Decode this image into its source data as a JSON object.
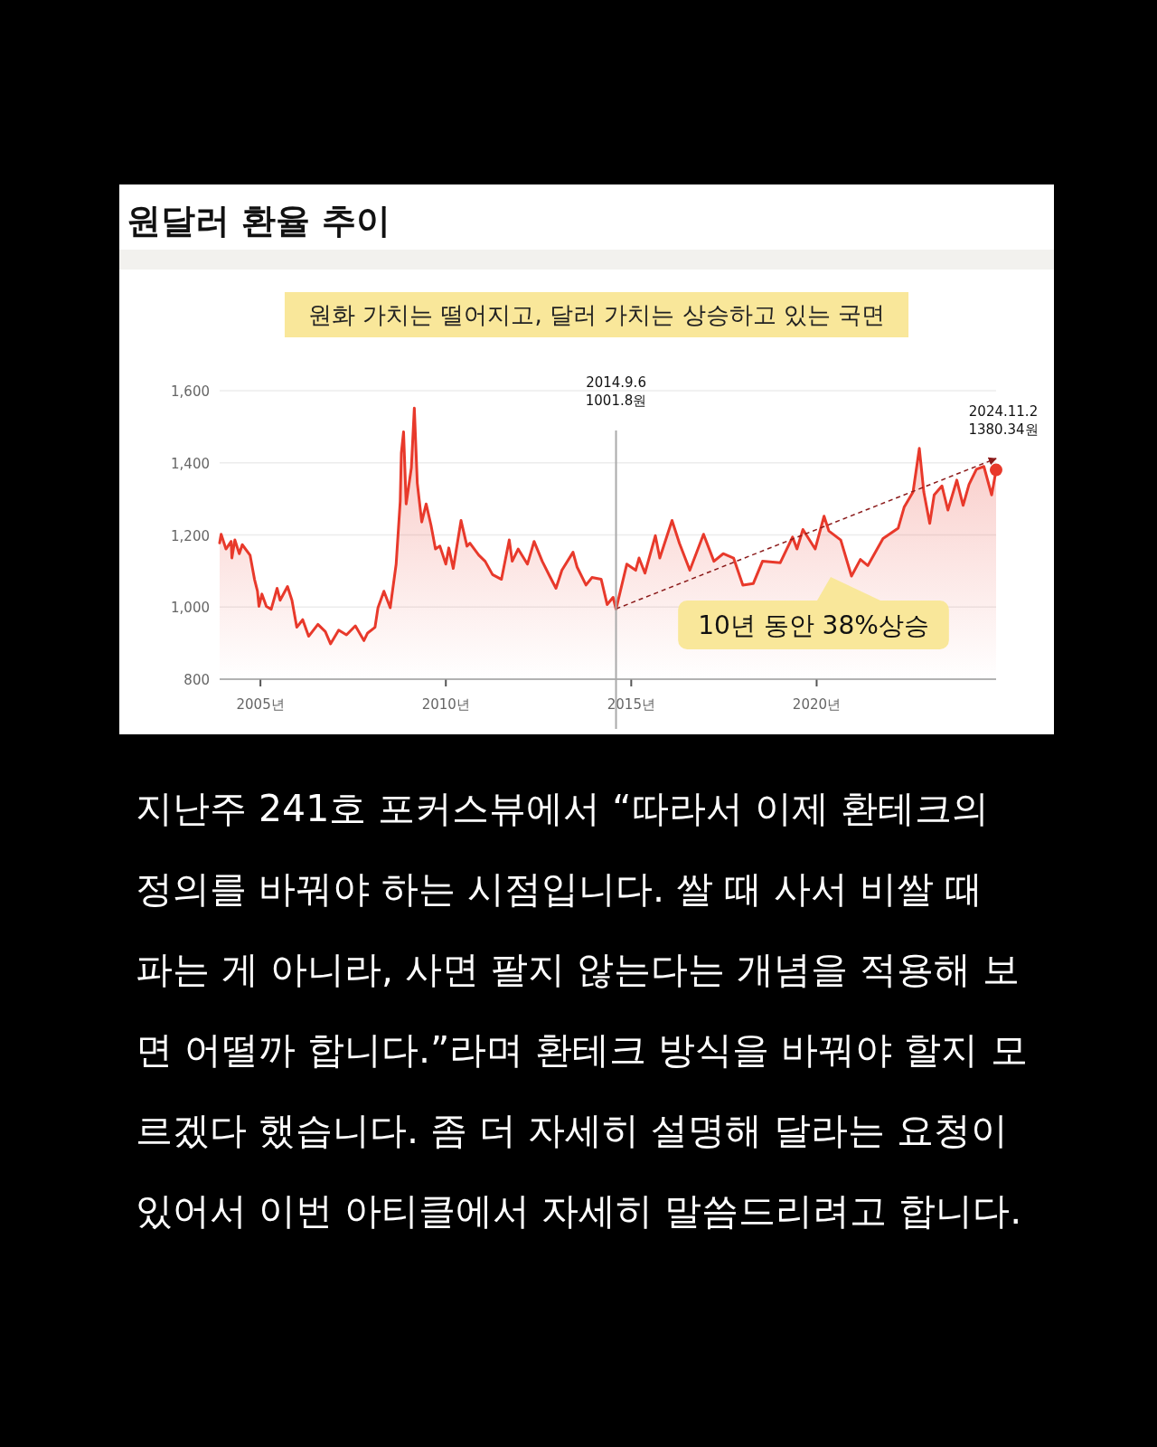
{
  "chart_data": {
    "type": "area",
    "title": "원달러 환율 추이",
    "subtitle": "원화 가치는 떨어지고, 달러 가치는 상승하고 있는 국면",
    "xlim": [
      2003.9,
      2024.84
    ],
    "ylim": [
      800,
      1600
    ],
    "xticks": [
      {
        "value": 2005,
        "label": "2005년"
      },
      {
        "value": 2010,
        "label": "2010년"
      },
      {
        "value": 2015,
        "label": "2015년"
      },
      {
        "value": 2020,
        "label": "2020년"
      }
    ],
    "yticks": [
      {
        "value": 800,
        "label": "800"
      },
      {
        "value": 1000,
        "label": "1,000"
      },
      {
        "value": 1200,
        "label": "1,200"
      },
      {
        "value": 1400,
        "label": "1,400"
      },
      {
        "value": 1600,
        "label": "1,600"
      }
    ],
    "grid": "y",
    "series": [
      {
        "color": "#e8392b",
        "x": [
          2003.9,
          2003.94,
          2004.07,
          2004.21,
          2004.23,
          2004.31,
          2004.43,
          2004.51,
          2004.72,
          2004.84,
          2004.92,
          2004.96,
          2005.04,
          2005.16,
          2005.29,
          2005.45,
          2005.53,
          2005.73,
          2005.85,
          2005.98,
          2006.14,
          2006.3,
          2006.55,
          2006.75,
          2006.89,
          2007.11,
          2007.32,
          2007.56,
          2007.79,
          2007.89,
          2008.09,
          2008.17,
          2008.33,
          2008.5,
          2008.66,
          2008.77,
          2008.8,
          2008.86,
          2008.93,
          2009.07,
          2009.15,
          2009.23,
          2009.35,
          2009.47,
          2009.6,
          2009.72,
          2009.84,
          2010.0,
          2010.08,
          2010.2,
          2010.41,
          2010.57,
          2010.65,
          2010.89,
          2011.06,
          2011.26,
          2011.5,
          2011.71,
          2011.79,
          2011.95,
          2012.2,
          2012.38,
          2012.6,
          2012.8,
          2012.97,
          2013.13,
          2013.43,
          2013.54,
          2013.78,
          2013.94,
          2014.19,
          2014.35,
          2014.51,
          2014.59,
          2014.88,
          2015.12,
          2015.21,
          2015.37,
          2015.65,
          2015.77,
          2016.1,
          2016.3,
          2016.58,
          2016.95,
          2017.23,
          2017.48,
          2017.76,
          2018.01,
          2018.29,
          2018.54,
          2019.02,
          2019.35,
          2019.47,
          2019.63,
          2019.96,
          2020.2,
          2020.33,
          2020.65,
          2020.94,
          2021.18,
          2021.38,
          2021.79,
          2022.2,
          2022.36,
          2022.6,
          2022.77,
          2022.89,
          2023.05,
          2023.17,
          2023.38,
          2023.54,
          2023.78,
          2023.95,
          2024.11,
          2024.31,
          2024.51,
          2024.72,
          2024.84
        ],
        "values": [
          1178,
          1202,
          1161,
          1182,
          1136,
          1186,
          1148,
          1173,
          1144,
          1077,
          1044,
          1002,
          1036,
          1002,
          994,
          1052,
          1019,
          1057,
          1019,
          944,
          965,
          919,
          952,
          932,
          898,
          936,
          923,
          948,
          907,
          928,
          944,
          998,
          1044,
          998,
          1119,
          1294,
          1427,
          1486,
          1286,
          1386,
          1552,
          1344,
          1236,
          1286,
          1227,
          1161,
          1169,
          1119,
          1164,
          1107,
          1240,
          1169,
          1177,
          1144,
          1127,
          1090,
          1077,
          1186,
          1127,
          1161,
          1119,
          1182,
          1127,
          1086,
          1052,
          1102,
          1152,
          1111,
          1061,
          1082,
          1077,
          1007,
          1027,
          994,
          1119,
          1102,
          1136,
          1094,
          1198,
          1136,
          1240,
          1177,
          1102,
          1202,
          1127,
          1148,
          1136,
          1061,
          1065,
          1127,
          1123,
          1194,
          1161,
          1215,
          1161,
          1252,
          1211,
          1186,
          1086,
          1132,
          1115,
          1190,
          1219,
          1277,
          1319,
          1440,
          1319,
          1232,
          1311,
          1336,
          1269,
          1352,
          1282,
          1340,
          1382,
          1390,
          1311,
          1380
        ]
      },
      {
        "type": "line",
        "color": "#8b1a1a",
        "line_style": "dashed",
        "x": [
          2014.59,
          2024.84
        ],
        "values": [
          995,
          1412
        ]
      }
    ],
    "ref_lines": [
      {
        "axis": "x",
        "value": 2014.59,
        "label": "2014.9.6\n1001.8원",
        "color": "#aaaaaa"
      }
    ],
    "annotations": [
      "10년 동안 38%상승",
      {
        "text": "2024.11.2\n1380.34원",
        "x": 2024.84,
        "y": 1380.34
      },
      "지난주 241호 포커스뷰에서 “따라서 이제 환테크의 정의를 바꿔야 하는 시점입니다. 쌀 때 사서 비쌀 때 파는 게 아니라, 사면 팔지 않는다는 개념을 적용해 보면 어떨까 합니다.”라며 환테크 방식을 바꿔야 할지 모르겠다 했습니다. 좀 더 자세히 설명해 달라는 요청이 있어서 이번 아티클에서 자세히 말씀드리려고 합니다."
    ]
  }
}
